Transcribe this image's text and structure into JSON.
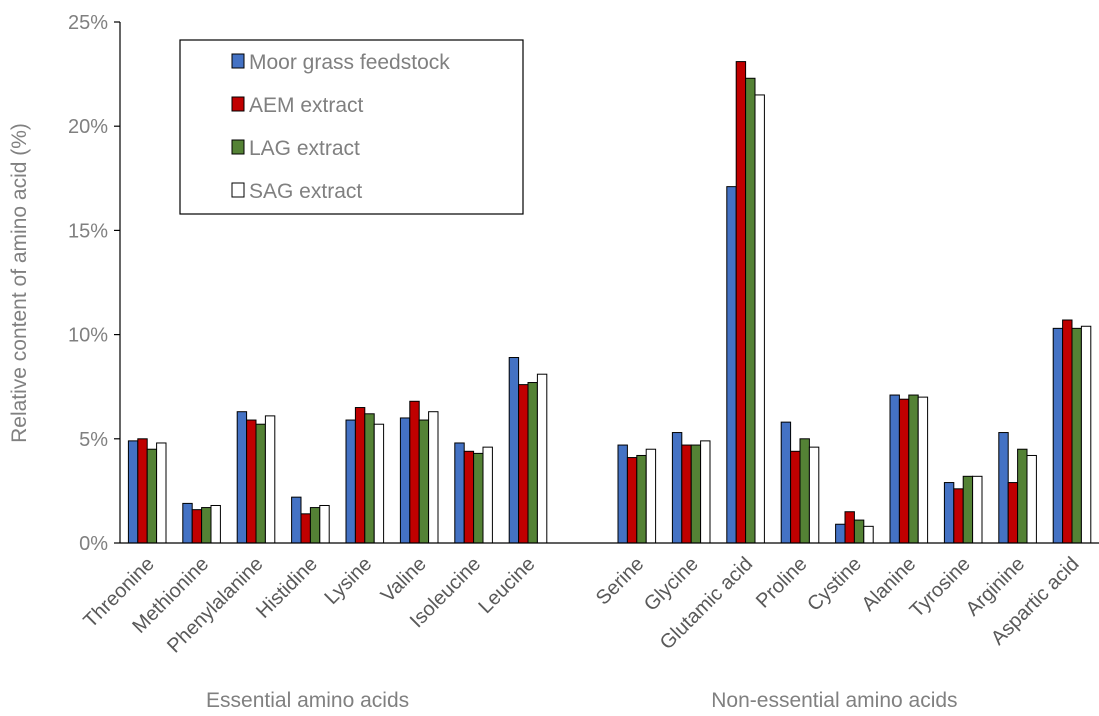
{
  "chart_data": {
    "type": "bar",
    "ylabel": "Relative content of amino acid (%)",
    "ylim": [
      0,
      25
    ],
    "yticks": [
      "0%",
      "5%",
      "10%",
      "15%",
      "20%",
      "25%"
    ],
    "grid": false,
    "legend_position": "top-left",
    "groups": [
      {
        "label": "Essential amino acids",
        "categories": [
          "Threonine",
          "Methionine",
          "Phenylalanine",
          "Histidine",
          "Lysine",
          "Valine",
          "Isoleucine",
          "Leucine"
        ]
      },
      {
        "label": "Non-essential amino acids",
        "categories": [
          "Serine",
          "Glycine",
          "Glutamic acid",
          "Proline",
          "Cystine",
          "Alanine",
          "Tyrosine",
          "Arginine",
          "Aspartic acid"
        ]
      }
    ],
    "categories": [
      "Threonine",
      "Methionine",
      "Phenylalanine",
      "Histidine",
      "Lysine",
      "Valine",
      "Isoleucine",
      "Leucine",
      "Serine",
      "Glycine",
      "Glutamic acid",
      "Proline",
      "Cystine",
      "Alanine",
      "Tyrosine",
      "Arginine",
      "Aspartic acid"
    ],
    "series": [
      {
        "name": "Moor grass feedstock",
        "color": "#4472c4",
        "values": [
          4.9,
          1.9,
          6.3,
          2.2,
          5.9,
          6.0,
          4.8,
          8.9,
          4.7,
          5.3,
          17.1,
          5.8,
          0.9,
          7.1,
          2.9,
          5.3,
          10.3
        ]
      },
      {
        "name": "AEM extract",
        "color": "#c00000",
        "values": [
          5.0,
          1.6,
          5.9,
          1.4,
          6.5,
          6.8,
          4.4,
          7.6,
          4.1,
          4.7,
          23.1,
          4.4,
          1.5,
          6.9,
          2.6,
          2.9,
          10.7
        ]
      },
      {
        "name": "LAG extract",
        "color": "#548235",
        "values": [
          4.5,
          1.7,
          5.7,
          1.7,
          6.2,
          5.9,
          4.3,
          7.7,
          4.2,
          4.7,
          22.3,
          5.0,
          1.1,
          7.1,
          3.2,
          4.5,
          10.3
        ]
      },
      {
        "name": "SAG extract",
        "color": "#ffffff",
        "values": [
          4.8,
          1.8,
          6.1,
          1.8,
          5.7,
          6.3,
          4.6,
          8.1,
          4.5,
          4.9,
          21.5,
          4.6,
          0.8,
          7.0,
          3.2,
          4.2,
          10.4
        ]
      }
    ]
  }
}
